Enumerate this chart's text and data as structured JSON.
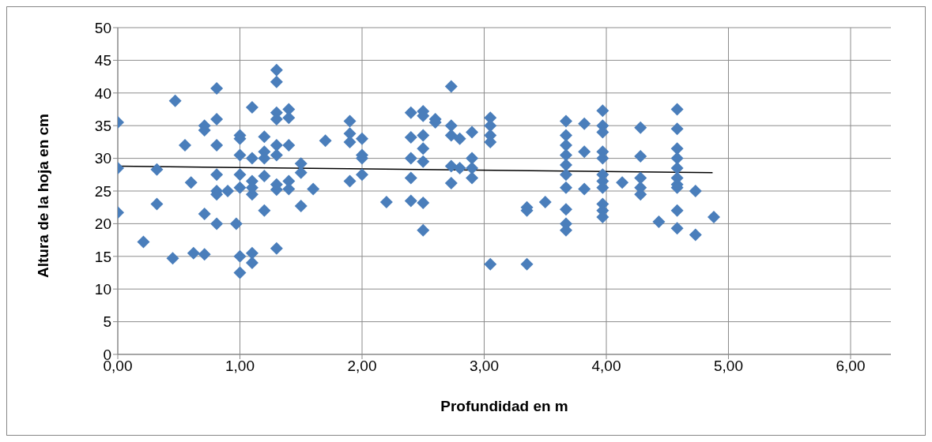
{
  "chart_data": {
    "type": "scatter",
    "xlabel": "Profundidad en m",
    "ylabel": "Altura de la hoja en cm",
    "xlim": [
      0,
      6.33
    ],
    "xticks": [
      {
        "value": 0,
        "label": "0,00"
      },
      {
        "value": 1,
        "label": "1,00"
      },
      {
        "value": 2,
        "label": "2,00"
      },
      {
        "value": 3,
        "label": "3,00"
      },
      {
        "value": 4,
        "label": "4,00"
      },
      {
        "value": 5,
        "label": "5,00"
      },
      {
        "value": 6,
        "label": "6,00"
      }
    ],
    "ylim": [
      0,
      50
    ],
    "yticks": [
      0,
      5,
      10,
      15,
      20,
      25,
      30,
      35,
      40,
      45,
      50
    ],
    "grid": true,
    "marker": "diamond",
    "series": [
      {
        "color": "#4a7ebb",
        "x": [
          0,
          0,
          0,
          0.21,
          0.32,
          0.32,
          0.45,
          0.47,
          0.55,
          0.62,
          0.6,
          0.71,
          0.71,
          0.71,
          0.71,
          0.81,
          0.81,
          0.81,
          0.81,
          0.81,
          0.81,
          0.81,
          0.9,
          0.97,
          1,
          1,
          1,
          1,
          1,
          1,
          1,
          1.1,
          1.1,
          1.1,
          1.1,
          1.1,
          1.1,
          1.1,
          1.2,
          1.2,
          1.2,
          1.2,
          1.2,
          1.3,
          1.3,
          1.3,
          1.3,
          1.3,
          1.3,
          1.3,
          1.3,
          1.3,
          1.4,
          1.4,
          1.4,
          1.4,
          1.4,
          1.5,
          1.5,
          1.5,
          1.6,
          1.7,
          1.9,
          1.9,
          1.9,
          1.9,
          2,
          2,
          2,
          2,
          2.2,
          2.4,
          2.4,
          2.4,
          2.4,
          2.4,
          2.5,
          2.5,
          2.5,
          2.5,
          2.5,
          2.5,
          2.5,
          2.6,
          2.6,
          2.73,
          2.73,
          2.73,
          2.73,
          2.73,
          2.8,
          2.8,
          2.9,
          2.9,
          2.9,
          2.9,
          3.05,
          3.05,
          3.05,
          3.05,
          3.05,
          3.35,
          3.35,
          3.35,
          3.5,
          3.67,
          3.67,
          3.67,
          3.67,
          3.67,
          3.67,
          3.67,
          3.67,
          3.67,
          3.67,
          3.82,
          3.82,
          3.82,
          3.97,
          3.97,
          3.97,
          3.97,
          3.97,
          3.97,
          3.97,
          3.97,
          3.97,
          3.97,
          3.97,
          4.13,
          4.28,
          4.28,
          4.28,
          4.28,
          4.28,
          4.43,
          4.58,
          4.58,
          4.58,
          4.58,
          4.58,
          4.58,
          4.58,
          4.58,
          4.58,
          4.58,
          4.73,
          4.73,
          4.88
        ],
        "values": [
          35.5,
          28.5,
          21.7,
          17.2,
          28.3,
          23,
          14.7,
          38.8,
          32,
          15.5,
          26.3,
          34.3,
          35,
          21.5,
          15.3,
          40.7,
          36,
          32,
          27.5,
          25,
          24.5,
          20,
          25,
          20,
          33.5,
          33,
          30.5,
          27.5,
          25.5,
          15,
          12.5,
          37.8,
          30,
          26.5,
          24.5,
          15.5,
          14,
          25.5,
          33.3,
          31,
          27.3,
          22,
          30,
          43.5,
          41.7,
          37,
          36,
          32,
          30.5,
          25.2,
          16.2,
          26,
          37.5,
          36.2,
          32,
          26.5,
          25.3,
          29.2,
          27.8,
          22.7,
          25.3,
          32.7,
          35.7,
          33.8,
          32.5,
          26.5,
          33,
          30.5,
          30,
          27.5,
          23.3,
          37,
          33.2,
          30,
          27,
          23.5,
          37.2,
          36.5,
          33.5,
          31.5,
          29.5,
          23.2,
          19,
          36,
          35.5,
          41,
          35,
          33.5,
          28.8,
          26.2,
          33,
          28.5,
          34,
          30,
          28.5,
          27,
          36.2,
          35,
          33.5,
          32.5,
          13.8,
          22.5,
          22,
          13.8,
          23.3,
          35.7,
          33.5,
          32,
          30.5,
          29,
          27.5,
          25.5,
          22.2,
          20,
          19,
          35.3,
          31,
          25.3,
          37.3,
          35,
          34,
          31,
          30,
          27.5,
          26.5,
          25.5,
          23,
          22,
          21,
          26.3,
          34.7,
          30.3,
          27,
          25.5,
          24.5,
          20.3,
          37.5,
          34.5,
          31.5,
          30,
          28.5,
          27,
          26,
          25.5,
          22,
          19.3,
          25,
          18.3,
          21
        ]
      },
      {
        "type": "line",
        "color": "#000000",
        "marker": "none",
        "x": [
          0,
          4.87
        ],
        "values": [
          28.8,
          27.8
        ]
      }
    ]
  }
}
